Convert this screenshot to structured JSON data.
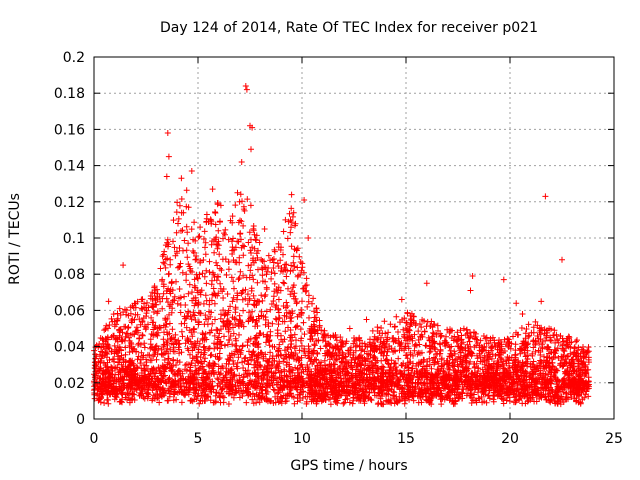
{
  "chart_data": {
    "type": "scatter",
    "title": "Day 124 of 2014, Rate Of TEC Index for receiver p021",
    "xlabel": "GPS time / hours",
    "ylabel": "ROTI / TECUs",
    "xlim": [
      0,
      25
    ],
    "ylim": [
      0,
      0.2
    ],
    "grid": true,
    "marker": "+",
    "color": "#ff0000",
    "x_ticks": [
      0,
      5,
      10,
      15,
      20,
      25
    ],
    "x_tick_labels": [
      "0",
      "5",
      "10",
      "15",
      "20",
      "25"
    ],
    "y_ticks": [
      0,
      0.02,
      0.04,
      0.06,
      0.08,
      0.1,
      0.12,
      0.14,
      0.16,
      0.18,
      0.2
    ],
    "y_tick_labels": [
      "0",
      "0.02",
      "0.04",
      "0.06",
      "0.08",
      "0.1",
      "0.12",
      "0.14",
      "0.16",
      "0.18",
      "0.2"
    ],
    "series": [
      {
        "name": "ROTI",
        "envelope_x": [
          0,
          1,
          2,
          3,
          3.5,
          4,
          4.5,
          5,
          5.5,
          6,
          6.5,
          7,
          7.5,
          8,
          8.5,
          9,
          9.5,
          10,
          10.5,
          11,
          12,
          13,
          14,
          15,
          16,
          17,
          18,
          19,
          20,
          21,
          22,
          23,
          23.8
        ],
        "envelope_y": [
          0.04,
          0.06,
          0.065,
          0.075,
          0.1,
          0.12,
          0.13,
          0.1,
          0.12,
          0.12,
          0.11,
          0.13,
          0.12,
          0.1,
          0.09,
          0.1,
          0.12,
          0.09,
          0.07,
          0.05,
          0.045,
          0.045,
          0.055,
          0.06,
          0.055,
          0.05,
          0.05,
          0.045,
          0.045,
          0.055,
          0.05,
          0.045,
          0.04
        ],
        "points_x": [
          3.55,
          3.6,
          3.5,
          7.3,
          7.35,
          7.5,
          7.55,
          7.6,
          7.1,
          6.9,
          4.2,
          4.3,
          4.7,
          5.7,
          6.1,
          9.5,
          9.6,
          10.1,
          21.7,
          22.5,
          18.2,
          18.1,
          19.7,
          16.0,
          14.8,
          20.3,
          20.6,
          21.5,
          5.1,
          6.0,
          9.2,
          10.3,
          1.4,
          2.8,
          3.3,
          0.7,
          12.3,
          13.1,
          8.2,
          7.0
        ],
        "points_y": [
          0.158,
          0.145,
          0.134,
          0.184,
          0.182,
          0.162,
          0.149,
          0.161,
          0.142,
          0.125,
          0.133,
          0.114,
          0.137,
          0.127,
          0.118,
          0.124,
          0.114,
          0.121,
          0.123,
          0.088,
          0.079,
          0.071,
          0.077,
          0.075,
          0.066,
          0.064,
          0.058,
          0.065,
          0.106,
          0.096,
          0.11,
          0.1,
          0.085,
          0.07,
          0.09,
          0.065,
          0.05,
          0.055,
          0.105,
          0.12
        ]
      }
    ]
  }
}
